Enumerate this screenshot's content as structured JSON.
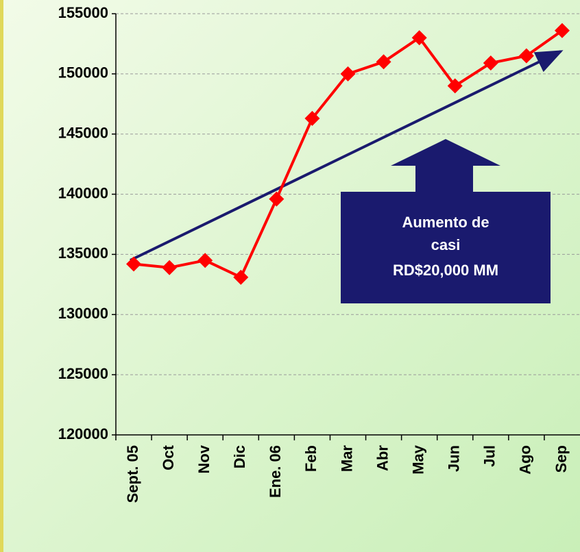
{
  "chart_data": {
    "type": "line",
    "categories": [
      "Sept. 05",
      "Oct",
      "Nov",
      "Dic",
      "Ene. 06",
      "Feb",
      "Mar",
      "Abr",
      "May",
      "Jun",
      "Jul",
      "Ago",
      "Sep"
    ],
    "series": [
      {
        "color": "#ff0000",
        "values": [
          134200,
          133900,
          134500,
          133100,
          139600,
          146300,
          150000,
          151000,
          153000,
          149000,
          150900,
          151500,
          153600
        ]
      }
    ],
    "ylim": [
      120000,
      155000
    ],
    "yticks": [
      120000,
      125000,
      130000,
      135000,
      140000,
      145000,
      150000,
      155000
    ],
    "grid": true,
    "annotation": [
      "Aumento de",
      "casi",
      "RD$20,000 MM"
    ]
  }
}
